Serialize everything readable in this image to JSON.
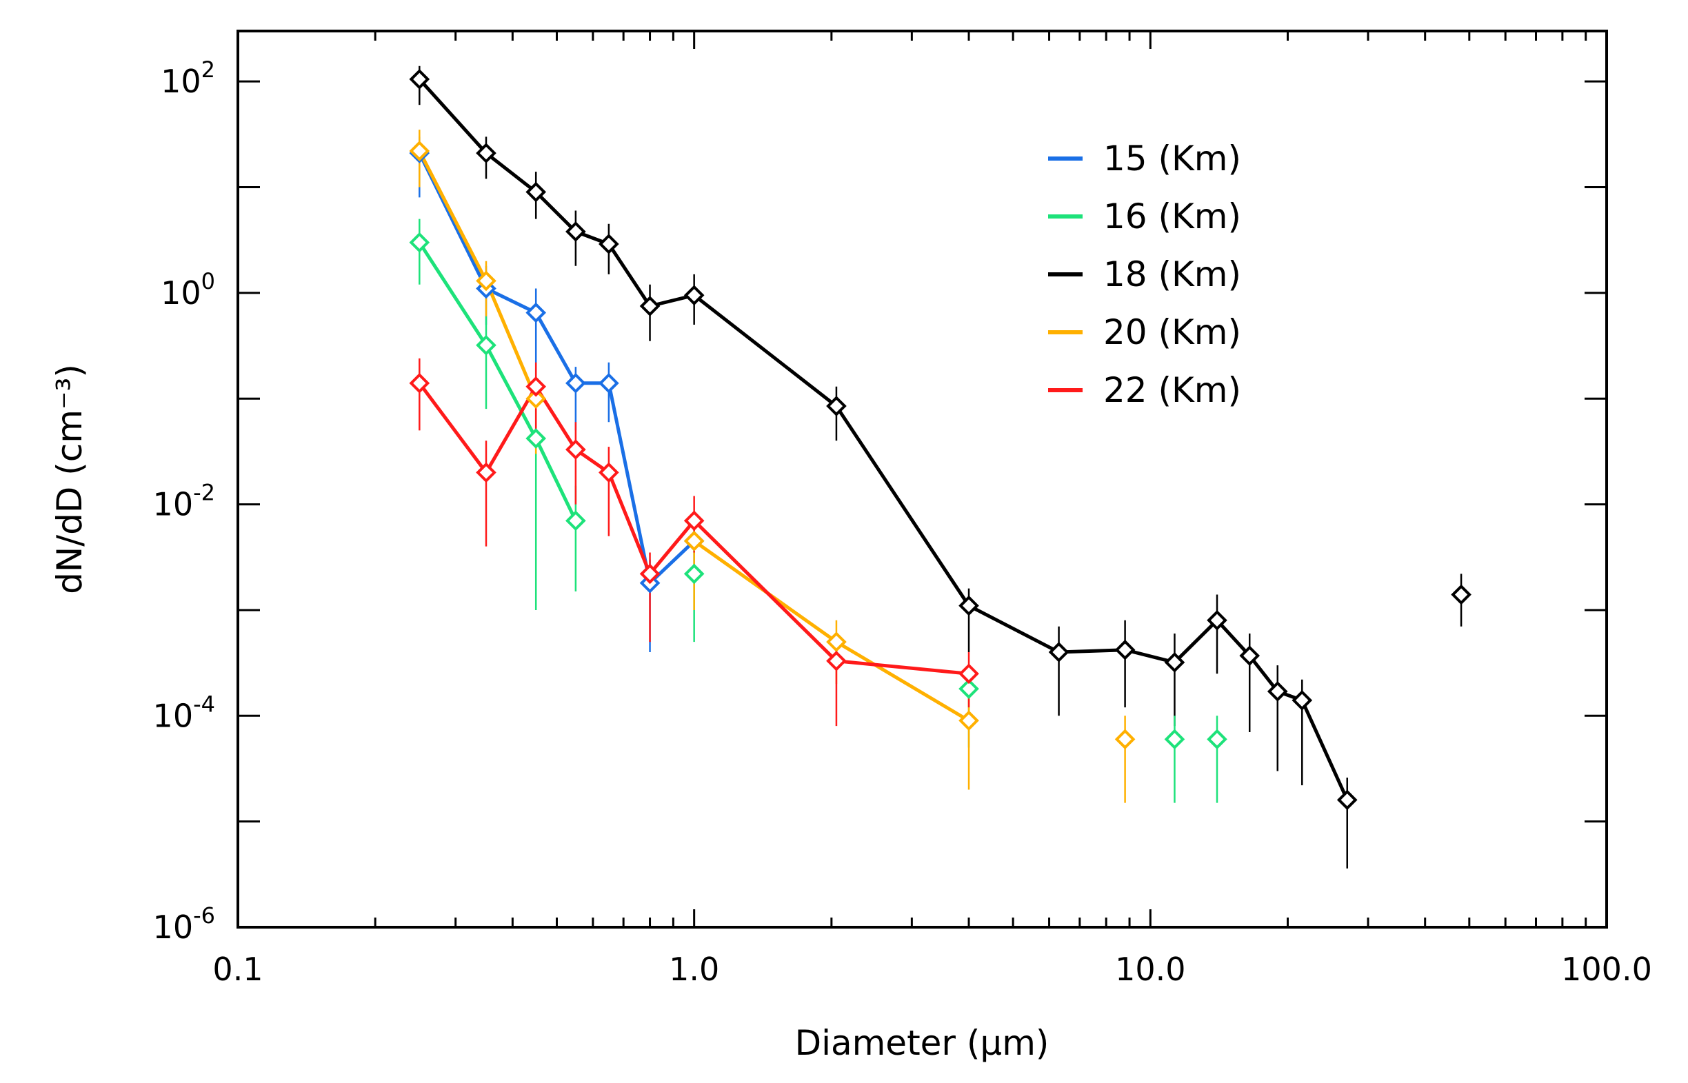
{
  "chart_data": {
    "type": "scatter",
    "xscale": "log",
    "yscale": "log",
    "xlabel": "Diameter (μm)",
    "ylabel": "dN/dD (cm⁻³)",
    "xlim": [
      0.1,
      100.0
    ],
    "ylim": [
      1e-06,
      300
    ],
    "x_tick_labels": [
      "0.1",
      "1.0",
      "10.0",
      "100.0"
    ],
    "x_tick_values": [
      0.1,
      1.0,
      10.0,
      100.0
    ],
    "y_tick_labels": [
      {
        "base": "10",
        "exp": "2",
        "value": 100
      },
      {
        "base": "10",
        "exp": "0",
        "value": 1
      },
      {
        "base": "10",
        "exp": "-2",
        "value": 0.01
      },
      {
        "base": "10",
        "exp": "-4",
        "value": 0.0001
      },
      {
        "base": "10",
        "exp": "-6",
        "value": 1e-06
      }
    ],
    "series": [
      {
        "name": "15 (Km)",
        "color": "#1a6fe6",
        "lines": [
          [
            0,
            1,
            2,
            3,
            4,
            5,
            6
          ]
        ],
        "points": [
          {
            "x": 0.25,
            "y": 21,
            "lo": 8,
            "hi": 30
          },
          {
            "x": 0.35,
            "y": 1.1,
            "lo": 0.5,
            "hi": 1.8
          },
          {
            "x": 0.45,
            "y": 0.65,
            "lo": 0.1,
            "hi": 1.1
          },
          {
            "x": 0.55,
            "y": 0.14,
            "lo": 0.05,
            "hi": 0.2
          },
          {
            "x": 0.65,
            "y": 0.14,
            "lo": 0.06,
            "hi": 0.22
          },
          {
            "x": 0.8,
            "y": 0.0018,
            "lo": 0.0004,
            "hi": 0.003
          },
          {
            "x": 1.0,
            "y": 0.0045,
            "lo": 0.002,
            "hi": 0.007
          }
        ]
      },
      {
        "name": "16 (Km)",
        "color": "#1de27a",
        "lines": [
          [
            0,
            1,
            2,
            3
          ]
        ],
        "points": [
          {
            "x": 0.25,
            "y": 3.0,
            "lo": 1.2,
            "hi": 5.0
          },
          {
            "x": 0.35,
            "y": 0.32,
            "lo": 0.08,
            "hi": 0.6
          },
          {
            "x": 0.45,
            "y": 0.042,
            "lo": 0.001,
            "hi": 0.09
          },
          {
            "x": 0.55,
            "y": 0.007,
            "lo": 0.0015,
            "hi": 0.015
          },
          {
            "x": 1.0,
            "y": 0.0022,
            "lo": 0.0005,
            "hi": 0.004
          },
          {
            "x": 4.0,
            "y": 0.00018,
            "lo": 5e-05,
            "hi": 0.0003
          },
          {
            "x": 11.3,
            "y": 6e-05,
            "lo": 1.5e-05,
            "hi": 0.0001
          },
          {
            "x": 14.0,
            "y": 6e-05,
            "lo": 1.5e-05,
            "hi": 0.0001
          }
        ]
      },
      {
        "name": "18 (Km)",
        "color": "#000000",
        "lines": [
          [
            0,
            1,
            2,
            3,
            4,
            5,
            6,
            7,
            8,
            9,
            10,
            11,
            12,
            13,
            14,
            15,
            16
          ]
        ],
        "points": [
          {
            "x": 0.25,
            "y": 105,
            "lo": 60,
            "hi": 140
          },
          {
            "x": 0.35,
            "y": 21,
            "lo": 12,
            "hi": 30
          },
          {
            "x": 0.45,
            "y": 9,
            "lo": 5,
            "hi": 14
          },
          {
            "x": 0.55,
            "y": 3.8,
            "lo": 1.8,
            "hi": 6
          },
          {
            "x": 0.65,
            "y": 2.9,
            "lo": 1.5,
            "hi": 4.5
          },
          {
            "x": 0.8,
            "y": 0.75,
            "lo": 0.35,
            "hi": 1.2
          },
          {
            "x": 1.0,
            "y": 0.95,
            "lo": 0.5,
            "hi": 1.5
          },
          {
            "x": 2.05,
            "y": 0.085,
            "lo": 0.04,
            "hi": 0.13
          },
          {
            "x": 4.0,
            "y": 0.0011,
            "lo": 0.0004,
            "hi": 0.0016
          },
          {
            "x": 6.3,
            "y": 0.0004,
            "lo": 0.0001,
            "hi": 0.0007
          },
          {
            "x": 8.8,
            "y": 0.00042,
            "lo": 0.00012,
            "hi": 0.0008
          },
          {
            "x": 11.3,
            "y": 0.00032,
            "lo": 8e-05,
            "hi": 0.0006
          },
          {
            "x": 14.0,
            "y": 0.0008,
            "lo": 0.00025,
            "hi": 0.0014
          },
          {
            "x": 16.5,
            "y": 0.00037,
            "lo": 7e-05,
            "hi": 0.0006
          },
          {
            "x": 19.0,
            "y": 0.00017,
            "lo": 3e-05,
            "hi": 0.0003
          },
          {
            "x": 21.5,
            "y": 0.00014,
            "lo": 2.2e-05,
            "hi": 0.00022
          },
          {
            "x": 27.0,
            "y": 1.6e-05,
            "lo": 3.6e-06,
            "hi": 2.6e-05
          },
          {
            "x": 48.0,
            "y": 0.0014,
            "lo": 0.0007,
            "hi": 0.0022
          }
        ]
      },
      {
        "name": "20 (Km)",
        "color": "#ffb000",
        "lines": [
          [
            0,
            1,
            2
          ],
          [
            3,
            4,
            5
          ]
        ],
        "points": [
          {
            "x": 0.25,
            "y": 22,
            "lo": 10,
            "hi": 35
          },
          {
            "x": 0.35,
            "y": 1.3,
            "lo": 0.6,
            "hi": 2.0
          },
          {
            "x": 0.45,
            "y": 0.1,
            "lo": 0.03,
            "hi": 0.16
          },
          {
            "x": 1.0,
            "y": 0.0045,
            "lo": 0.001,
            "hi": 0.008
          },
          {
            "x": 2.05,
            "y": 0.0005,
            "lo": 0.0002,
            "hi": 0.0008
          },
          {
            "x": 4.0,
            "y": 9e-05,
            "lo": 2e-05,
            "hi": 0.00015
          },
          {
            "x": 8.8,
            "y": 6e-05,
            "lo": 1.5e-05,
            "hi": 0.0001
          }
        ]
      },
      {
        "name": "22 (Km)",
        "color": "#ff1a1a",
        "lines": [
          [
            0,
            1,
            2,
            3,
            4,
            5,
            6,
            7,
            8
          ]
        ],
        "points": [
          {
            "x": 0.25,
            "y": 0.14,
            "lo": 0.05,
            "hi": 0.24
          },
          {
            "x": 0.35,
            "y": 0.02,
            "lo": 0.004,
            "hi": 0.04
          },
          {
            "x": 0.45,
            "y": 0.13,
            "lo": 0.05,
            "hi": 0.22
          },
          {
            "x": 0.55,
            "y": 0.033,
            "lo": 0.01,
            "hi": 0.06
          },
          {
            "x": 0.65,
            "y": 0.02,
            "lo": 0.005,
            "hi": 0.035
          },
          {
            "x": 0.8,
            "y": 0.0022,
            "lo": 0.0005,
            "hi": 0.0035
          },
          {
            "x": 1.0,
            "y": 0.007,
            "lo": 0.0035,
            "hi": 0.012
          },
          {
            "x": 2.05,
            "y": 0.00033,
            "lo": 8e-05,
            "hi": 0.0006
          },
          {
            "x": 4.0,
            "y": 0.00025,
            "lo": 0.00012,
            "hi": 0.0004
          }
        ]
      }
    ],
    "legend_position": "top-center"
  }
}
